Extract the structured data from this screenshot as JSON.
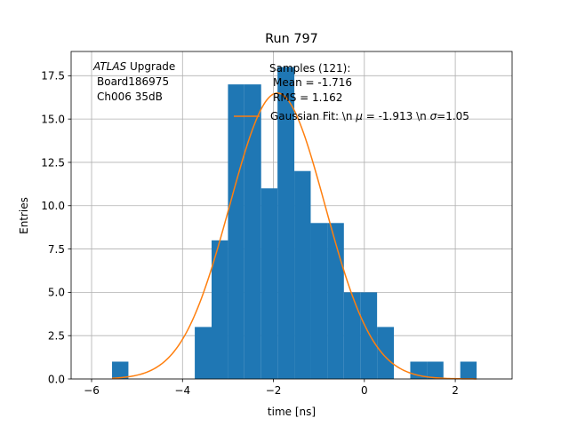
{
  "chart_data": {
    "type": "bar",
    "title": "Run 797",
    "xlabel": "time [ns]",
    "ylabel": "Entries",
    "xlim": [
      -6.45,
      3.25
    ],
    "ylim": [
      0,
      18.9
    ],
    "grid": true,
    "x_ticks": [
      -6,
      -4,
      -2,
      0,
      2
    ],
    "x_tick_labels": [
      "−6",
      "−4",
      "−2",
      "0",
      "2"
    ],
    "y_ticks": [
      0,
      2.5,
      5,
      7.5,
      10,
      12.5,
      15,
      17.5
    ],
    "y_tick_labels": [
      "0.0",
      "2.5",
      "5.0",
      "7.5",
      "10.0",
      "12.5",
      "15.0",
      "17.5"
    ],
    "bin_edges": [
      -5.55,
      -5.19,
      -4.82,
      -4.46,
      -4.09,
      -3.73,
      -3.36,
      -3.0,
      -2.64,
      -2.27,
      -1.91,
      -1.54,
      -1.18,
      -0.81,
      -0.45,
      -0.08,
      0.28,
      0.65,
      1.01,
      1.38,
      1.74,
      2.11,
      2.47
    ],
    "counts": [
      1,
      0,
      0,
      0,
      0,
      3,
      8,
      17,
      17,
      11,
      18,
      12,
      9,
      9,
      5,
      5,
      3,
      0,
      1,
      1,
      0,
      1
    ],
    "bar_color": "#1f77b4",
    "fit": {
      "label_parts": [
        "Gaussian Fit: \\n ",
        "μ",
        " = -1.913 \\n ",
        "σ",
        "=1.05"
      ],
      "mu": -1.913,
      "sigma": 1.05,
      "amplitude": 16.5,
      "x_range": [
        -5.55,
        2.47
      ],
      "color": "#ff7f0e"
    },
    "annotation_lines": [
      "Board186975",
      "Ch006 35dB"
    ],
    "annotation_title": {
      "italic": "ATLAS",
      "rest": " Upgrade"
    },
    "stats_lines": [
      "Samples (121):",
      "Mean = -1.716",
      "RMS = 1.162"
    ],
    "legend_placement": "top-right"
  }
}
